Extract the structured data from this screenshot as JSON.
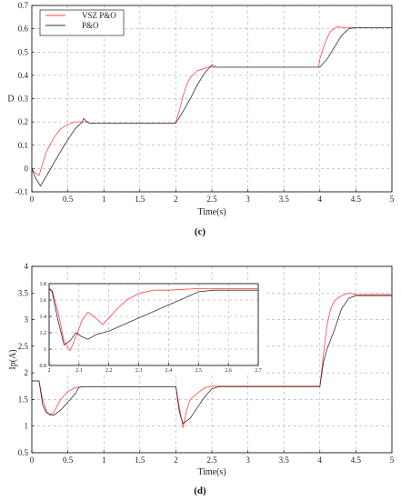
{
  "colors": {
    "vsz": "#ff4444",
    "po": "#333333",
    "grid": "#9a9a9a",
    "axis": "#000000"
  },
  "chart_data": [
    {
      "id": "c",
      "type": "line",
      "caption": "(c)",
      "xlabel": "Time(s)",
      "ylabel": "D",
      "xlim": [
        0,
        5
      ],
      "ylim": [
        -0.1,
        0.7
      ],
      "xticks": [
        0,
        0.5,
        1,
        1.5,
        2,
        2.5,
        3,
        3.5,
        4,
        4.5,
        5
      ],
      "yticks": [
        -0.1,
        0,
        0.1,
        0.2,
        0.3,
        0.4,
        0.5,
        0.6,
        0.7
      ],
      "grid": true,
      "legend": {
        "position": "top-left",
        "entries": [
          "VSZ P&O",
          "P&O"
        ]
      },
      "series": [
        {
          "name": "VSZ P&O",
          "x": [
            0,
            0.05,
            0.1,
            0.15,
            0.2,
            0.3,
            0.4,
            0.5,
            0.55,
            0.6,
            0.65,
            0.7,
            0.75,
            0.8,
            1.0,
            1.5,
            1.98,
            2.0,
            2.05,
            2.1,
            2.15,
            2.2,
            2.3,
            2.4,
            2.45,
            2.5,
            2.6,
            3.0,
            3.5,
            3.98,
            4.0,
            4.05,
            4.1,
            4.15,
            4.2,
            4.25,
            4.3,
            5.0
          ],
          "y": [
            0,
            -0.02,
            -0.03,
            0.02,
            0.07,
            0.13,
            0.17,
            0.19,
            0.195,
            0.2,
            0.2,
            0.2,
            0.2,
            0.195,
            0.195,
            0.195,
            0.195,
            0.2,
            0.25,
            0.31,
            0.36,
            0.39,
            0.42,
            0.43,
            0.435,
            0.435,
            0.435,
            0.435,
            0.435,
            0.435,
            0.47,
            0.52,
            0.56,
            0.59,
            0.6,
            0.61,
            0.605,
            0.605
          ]
        },
        {
          "name": "P&O",
          "x": [
            0,
            0.05,
            0.12,
            0.15,
            0.3,
            0.45,
            0.6,
            0.7,
            0.72,
            0.75,
            0.8,
            1.0,
            1.5,
            2.0,
            2.1,
            2.2,
            2.3,
            2.4,
            2.5,
            2.55,
            3.0,
            3.5,
            4.0,
            4.1,
            4.2,
            4.3,
            4.4,
            4.5,
            5.0
          ],
          "y": [
            0,
            -0.04,
            -0.075,
            -0.06,
            0.02,
            0.1,
            0.17,
            0.2,
            0.215,
            0.205,
            0.195,
            0.195,
            0.195,
            0.195,
            0.245,
            0.3,
            0.36,
            0.41,
            0.445,
            0.435,
            0.435,
            0.435,
            0.435,
            0.47,
            0.52,
            0.57,
            0.6,
            0.605,
            0.605
          ]
        }
      ]
    },
    {
      "id": "d",
      "type": "line",
      "caption": "(d)",
      "xlabel": "Time(s)",
      "ylabel": "Ip(A)",
      "xlim": [
        0,
        5
      ],
      "ylim": [
        0.5,
        4
      ],
      "xticks": [
        0,
        0.5,
        1,
        1.5,
        2,
        2.5,
        3,
        3.5,
        4,
        4.5,
        5
      ],
      "yticks": [
        0.5,
        1,
        1.5,
        2,
        2.5,
        3,
        3.5,
        4
      ],
      "grid": true,
      "series": [
        {
          "name": "VSZ P&O",
          "x": [
            0,
            0.1,
            0.15,
            0.2,
            0.25,
            0.3,
            0.4,
            0.5,
            0.6,
            0.7,
            1.0,
            1.5,
            2.0,
            2.05,
            2.1,
            2.15,
            2.2,
            2.3,
            2.4,
            2.5,
            3.0,
            3.5,
            4.0,
            4.05,
            4.1,
            4.15,
            4.2,
            4.3,
            4.4,
            4.5,
            5.0
          ],
          "y": [
            1.85,
            1.85,
            1.5,
            1.3,
            1.2,
            1.25,
            1.5,
            1.65,
            1.72,
            1.74,
            1.74,
            1.74,
            1.74,
            1.35,
            0.97,
            1.3,
            1.5,
            1.62,
            1.72,
            1.75,
            1.75,
            1.75,
            1.75,
            2.35,
            2.9,
            3.2,
            3.35,
            3.45,
            3.5,
            3.47,
            3.47
          ]
        },
        {
          "name": "P&O",
          "x": [
            0,
            0.1,
            0.15,
            0.2,
            0.3,
            0.4,
            0.5,
            0.6,
            0.65,
            0.7,
            1.0,
            1.5,
            2.0,
            2.05,
            2.1,
            2.2,
            2.3,
            2.4,
            2.5,
            2.6,
            3.0,
            3.5,
            4.0,
            4.05,
            4.1,
            4.2,
            4.3,
            4.4,
            4.5,
            5.0
          ],
          "y": [
            1.85,
            1.85,
            1.4,
            1.25,
            1.2,
            1.3,
            1.45,
            1.6,
            1.72,
            1.74,
            1.74,
            1.74,
            1.74,
            1.25,
            1.05,
            1.15,
            1.35,
            1.55,
            1.7,
            1.74,
            1.74,
            1.74,
            1.74,
            2.2,
            2.45,
            2.8,
            3.2,
            3.4,
            3.45,
            3.45
          ]
        }
      ],
      "inset": {
        "xlim": [
          2,
          2.7
        ],
        "ylim": [
          0.8,
          1.8
        ],
        "xticks": [
          2,
          2.1,
          2.2,
          2.3,
          2.4,
          2.5,
          2.6,
          2.7
        ],
        "yticks": [
          0.8,
          1,
          1.2,
          1.4,
          1.6,
          1.8
        ],
        "series": [
          {
            "name": "VSZ P&O",
            "x": [
              2,
              2.01,
              2.03,
              2.05,
              2.07,
              2.09,
              2.11,
              2.13,
              2.15,
              2.18,
              2.2,
              2.23,
              2.26,
              2.3,
              2.35,
              2.4,
              2.45,
              2.5,
              2.55,
              2.6,
              2.65,
              2.7
            ],
            "y": [
              1.74,
              1.72,
              1.45,
              1.1,
              0.98,
              1.15,
              1.35,
              1.45,
              1.4,
              1.3,
              1.38,
              1.5,
              1.6,
              1.68,
              1.72,
              1.72,
              1.73,
              1.74,
              1.74,
              1.74,
              1.74,
              1.74
            ]
          },
          {
            "name": "P&O",
            "x": [
              2,
              2.01,
              2.03,
              2.05,
              2.07,
              2.09,
              2.11,
              2.13,
              2.16,
              2.2,
              2.25,
              2.3,
              2.35,
              2.4,
              2.45,
              2.5,
              2.55,
              2.6,
              2.65,
              2.7
            ],
            "y": [
              1.74,
              1.7,
              1.35,
              1.05,
              1.1,
              1.2,
              1.15,
              1.12,
              1.18,
              1.22,
              1.3,
              1.38,
              1.46,
              1.54,
              1.62,
              1.7,
              1.72,
              1.72,
              1.72,
              1.72
            ]
          }
        ]
      }
    }
  ]
}
